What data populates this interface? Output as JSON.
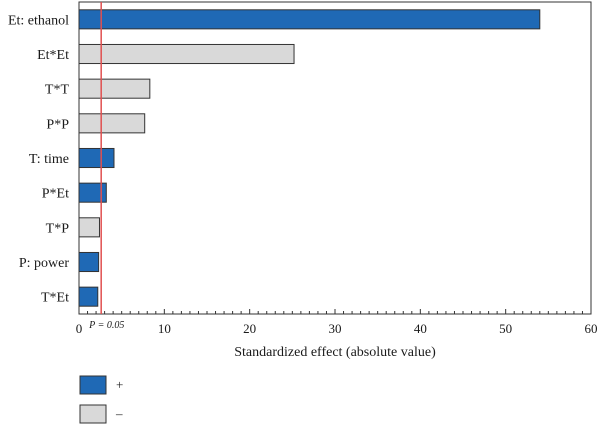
{
  "chart_data": {
    "type": "bar",
    "orientation": "horizontal",
    "title": "",
    "xlabel": "Standardized effect (absolute value)",
    "ylabel": "",
    "xlim": [
      0,
      60
    ],
    "x_ticks": [
      0,
      10,
      20,
      30,
      40,
      50,
      60
    ],
    "categories": [
      "Et: ethanol",
      "Et*Et",
      "T*T",
      "P*P",
      "T: time",
      "P*Et",
      "T*P",
      "P: power",
      "T*Et"
    ],
    "values": [
      54,
      25.2,
      8.3,
      7.7,
      4.1,
      3.2,
      2.4,
      2.3,
      2.2
    ],
    "signs": [
      "+",
      "-",
      "-",
      "-",
      "+",
      "+",
      "-",
      "+",
      "+"
    ],
    "reference_line": {
      "value": 2.6,
      "label": "P = 0.05",
      "color": "#e05050"
    },
    "legend": [
      {
        "sign": "+",
        "label": "+",
        "color": "#1f69b5"
      },
      {
        "sign": "-",
        "label": "–",
        "color": "#d9d9d9"
      }
    ],
    "colors": {
      "positive": "#1f69b5",
      "negative": "#d9d9d9",
      "border": "#333333"
    },
    "grid": false
  }
}
